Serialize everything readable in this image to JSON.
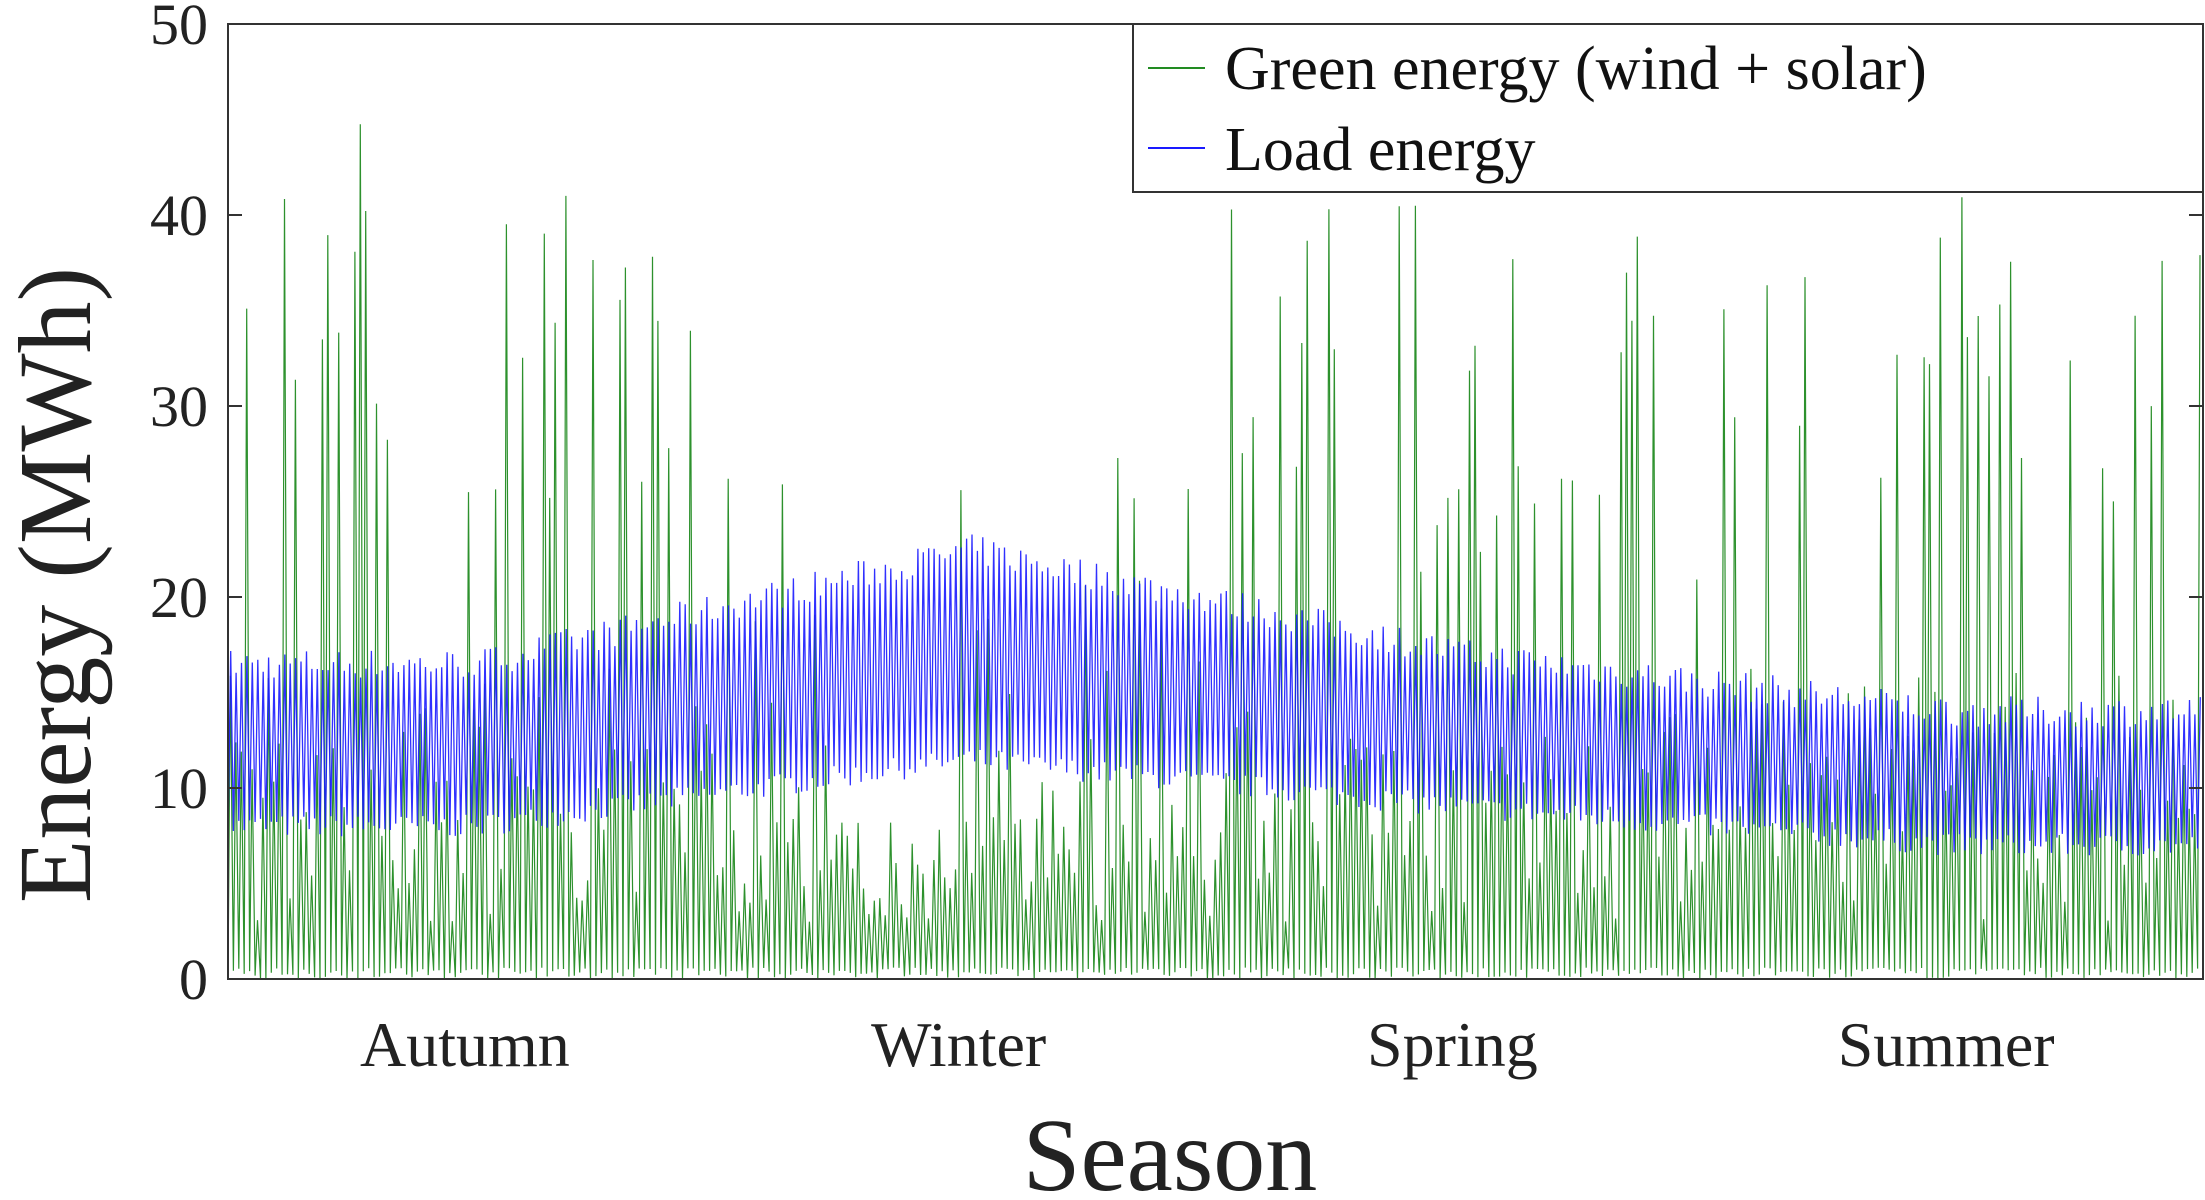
{
  "chart_data": {
    "type": "line",
    "xlabel": "Season",
    "ylabel": "Energy (MWh)",
    "ylim": [
      0,
      50
    ],
    "yticks": [
      0,
      10,
      20,
      30,
      40,
      50
    ],
    "categories": [
      "Autumn",
      "Winter",
      "Spring",
      "Summer"
    ],
    "legend_position": "top-right",
    "sample_interval": "daily (365 days, starting in Autumn)",
    "series": [
      {
        "name": "Green energy (wind + solar)",
        "color": "#228B22",
        "description": "Highly intermittent; daily min near 0, daily peaks vary",
        "daily_max_envelope_by_season": {
          "Autumn": [
            25,
            46
          ],
          "Winter": [
            10,
            29
          ],
          "Spring": [
            20,
            41
          ],
          "Summer": [
            25,
            41
          ]
        }
      },
      {
        "name": "Load energy",
        "color": "#1a1aff",
        "daily_min_by_season": {
          "Autumn": 8,
          "Winter": 11.5,
          "Spring": 9,
          "Summer": 7
        },
        "daily_max_by_season": {
          "Autumn": 16.5,
          "Winter": 22.5,
          "Spring": 17,
          "Summer": 14
        }
      }
    ]
  }
}
